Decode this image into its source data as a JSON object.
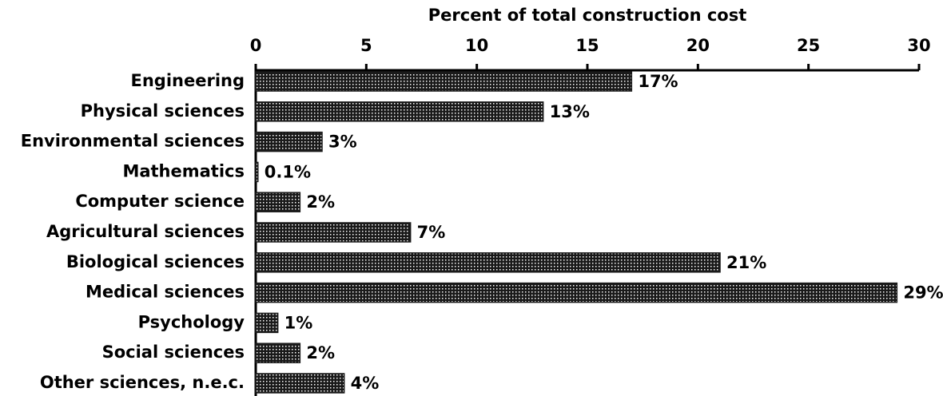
{
  "chart_data": {
    "type": "bar",
    "orientation": "horizontal",
    "x_label": "Percent of total construction cost",
    "categories": [
      "Engineering",
      "Physical sciences",
      "Environmental sciences",
      "Mathematics",
      "Computer science",
      "Agricultural sciences",
      "Biological sciences",
      "Medical sciences",
      "Psychology",
      "Social sciences",
      "Other sciences, n.e.c."
    ],
    "values": [
      17,
      13,
      3,
      0.1,
      2,
      7,
      21,
      29,
      1,
      2,
      4
    ],
    "value_labels": [
      "17%",
      "13%",
      "3%",
      "0.1%",
      "2%",
      "7%",
      "21%",
      "29%",
      "1%",
      "2%",
      "4%"
    ],
    "color": "#1a1a1a",
    "xlim": [
      0,
      30
    ],
    "xticks": [
      0,
      5,
      10,
      15,
      20,
      25,
      30
    ],
    "grid": false
  }
}
